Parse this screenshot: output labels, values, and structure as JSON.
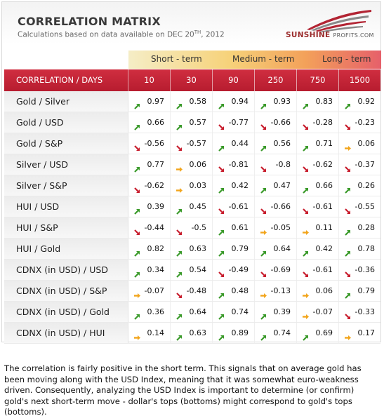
{
  "header": {
    "title": "CORRELATION MATRIX",
    "subtitle_prefix": "Calculations based on data available on  DEC 20",
    "subtitle_sup": "TH",
    "subtitle_suffix": ", 2012",
    "logo_text_main": "SUNSHINE",
    "logo_text_small": "PROFITS.COM"
  },
  "colors": {
    "header_red": "#c0242f",
    "arrow_up": "#3a9a2a",
    "arrow_down": "#c81e2e",
    "arrow_flat": "#f2a51c"
  },
  "term_labels": [
    "Short - term",
    "Medium - term",
    "Long - term"
  ],
  "chart_data": {
    "type": "table",
    "title": "CORRELATION MATRIX",
    "corner_label": "CORRELATION / DAYS",
    "columns": [
      "10",
      "30",
      "90",
      "250",
      "750",
      "1500"
    ],
    "rows": [
      {
        "label": "Gold / Silver",
        "values": [
          0.97,
          0.58,
          0.94,
          0.93,
          0.83,
          0.92
        ],
        "arrows": [
          "up",
          "up",
          "up",
          "up",
          "up",
          "up"
        ]
      },
      {
        "label": "Gold / USD",
        "values": [
          0.66,
          0.57,
          -0.77,
          -0.66,
          -0.28,
          -0.23
        ],
        "arrows": [
          "up",
          "up",
          "down",
          "down",
          "down",
          "down"
        ]
      },
      {
        "label": "Gold / S&P",
        "values": [
          -0.56,
          -0.57,
          0.44,
          0.56,
          0.71,
          0.06
        ],
        "arrows": [
          "down",
          "down",
          "up",
          "up",
          "up",
          "flat"
        ]
      },
      {
        "label": "Silver / USD",
        "values": [
          0.77,
          0.06,
          -0.81,
          -0.8,
          -0.62,
          -0.37
        ],
        "arrows": [
          "up",
          "flat",
          "down",
          "down",
          "down",
          "down"
        ]
      },
      {
        "label": "Silver / S&P",
        "values": [
          -0.62,
          0.03,
          0.42,
          0.47,
          0.66,
          0.26
        ],
        "arrows": [
          "down",
          "flat",
          "up",
          "up",
          "up",
          "up"
        ]
      },
      {
        "label": "HUI / USD",
        "values": [
          0.39,
          0.45,
          -0.61,
          -0.66,
          -0.61,
          -0.55
        ],
        "arrows": [
          "up",
          "up",
          "down",
          "down",
          "down",
          "down"
        ]
      },
      {
        "label": "HUI / S&P",
        "values": [
          -0.44,
          -0.5,
          0.61,
          -0.05,
          0.11,
          0.28
        ],
        "arrows": [
          "down",
          "down",
          "up",
          "flat",
          "flat",
          "up"
        ]
      },
      {
        "label": "HUI / Gold",
        "values": [
          0.82,
          0.63,
          0.79,
          0.64,
          0.42,
          0.78
        ],
        "arrows": [
          "up",
          "up",
          "up",
          "up",
          "up",
          "up"
        ]
      },
      {
        "label": "CDNX (in USD) / USD",
        "values": [
          0.34,
          0.54,
          -0.49,
          -0.69,
          -0.61,
          -0.36
        ],
        "arrows": [
          "up",
          "up",
          "down",
          "down",
          "down",
          "down"
        ]
      },
      {
        "label": "CDNX (in USD) / S&P",
        "values": [
          -0.07,
          -0.48,
          0.48,
          -0.13,
          0.06,
          0.79
        ],
        "arrows": [
          "flat",
          "down",
          "up",
          "flat",
          "flat",
          "up"
        ]
      },
      {
        "label": "CDNX (in USD) / Gold",
        "values": [
          0.36,
          0.64,
          0.74,
          0.39,
          -0.07,
          -0.33
        ],
        "arrows": [
          "up",
          "up",
          "up",
          "up",
          "flat",
          "down"
        ]
      },
      {
        "label": "CDNX (in USD) / HUI",
        "values": [
          0.14,
          0.63,
          0.89,
          0.74,
          0.69,
          0.17
        ],
        "arrows": [
          "flat",
          "up",
          "up",
          "up",
          "up",
          "flat"
        ]
      }
    ]
  },
  "footer_text": "The correlation is fairly positive in the short term. This signals that on average gold has been moving along with the USD Index, meaning that it was somewhat euro-weakness driven. Consequently, analyzing the USD Index is important to determine (or confirm) gold's next short-term move - dollar's tops (bottoms) might correspond to gold's tops (bottoms)."
}
